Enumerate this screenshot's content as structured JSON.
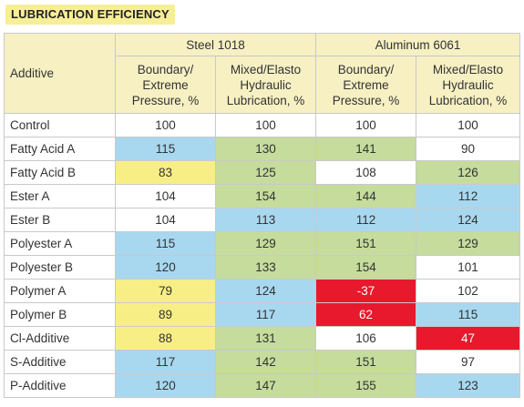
{
  "title": "LUBRICATION EFFICIENCY",
  "header": {
    "additive": "Additive",
    "groups": [
      "Steel 1018",
      "Aluminum 6061"
    ],
    "subcolumns": [
      "Boundary/\nExtreme\nPressure, %",
      "Mixed/Elasto\nHydraulic\nLubrication, %",
      "Boundary/\nExtreme\nPressure, %",
      "Mixed/Elasto\nHydraulic\nLubrication, %"
    ]
  },
  "colors": {
    "header_fill": "#f6f0c3",
    "title_fill": "#f7ee97",
    "blue": "#a8d8f0",
    "green": "#c5dc9c",
    "yellow": "#f8ee86",
    "red": "#e8192c",
    "white": "#ffffff"
  },
  "rows": [
    {
      "additive": "Control",
      "values": [
        "100",
        "100",
        "100",
        "100"
      ],
      "colors": [
        "white",
        "white",
        "white",
        "white"
      ]
    },
    {
      "additive": "Fatty Acid A",
      "values": [
        "115",
        "130",
        "141",
        "90"
      ],
      "colors": [
        "blue",
        "green",
        "green",
        "white"
      ]
    },
    {
      "additive": "Fatty Acid B",
      "values": [
        "83",
        "125",
        "108",
        "126"
      ],
      "colors": [
        "yellow",
        "green",
        "white",
        "green"
      ]
    },
    {
      "additive": "Ester A",
      "values": [
        "104",
        "154",
        "144",
        "112"
      ],
      "colors": [
        "white",
        "green",
        "green",
        "blue"
      ]
    },
    {
      "additive": "Ester B",
      "values": [
        "104",
        "113",
        "112",
        "124"
      ],
      "colors": [
        "white",
        "blue",
        "blue",
        "blue"
      ]
    },
    {
      "additive": "Polyester A",
      "values": [
        "115",
        "129",
        "151",
        "129"
      ],
      "colors": [
        "blue",
        "green",
        "green",
        "green"
      ]
    },
    {
      "additive": "Polyester B",
      "values": [
        "120",
        "133",
        "154",
        "101"
      ],
      "colors": [
        "blue",
        "green",
        "green",
        "white"
      ]
    },
    {
      "additive": "Polymer A",
      "values": [
        "79",
        "124",
        "-37",
        "102"
      ],
      "colors": [
        "yellow",
        "blue",
        "red",
        "white"
      ]
    },
    {
      "additive": "Polymer B",
      "values": [
        "89",
        "117",
        "62",
        "115"
      ],
      "colors": [
        "yellow",
        "blue",
        "red",
        "blue"
      ]
    },
    {
      "additive": "Cl-Additive",
      "values": [
        "88",
        "131",
        "106",
        "47"
      ],
      "colors": [
        "yellow",
        "green",
        "white",
        "red"
      ]
    },
    {
      "additive": "S-Additive",
      "values": [
        "117",
        "142",
        "151",
        "97"
      ],
      "colors": [
        "blue",
        "green",
        "green",
        "white"
      ]
    },
    {
      "additive": "P-Additive",
      "values": [
        "120",
        "147",
        "155",
        "123"
      ],
      "colors": [
        "blue",
        "green",
        "green",
        "blue"
      ]
    }
  ]
}
